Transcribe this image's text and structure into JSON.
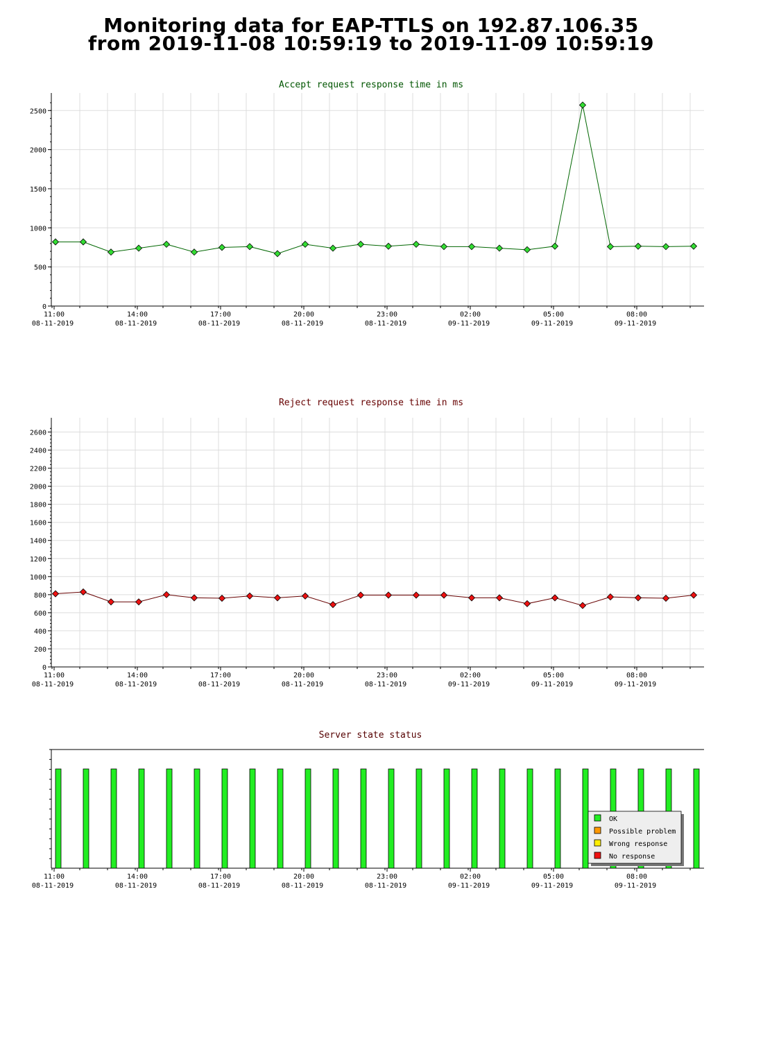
{
  "page_title": {
    "line1": "Monitoring data for EAP-TTLS on 192.87.106.35",
    "line2": "from 2019-11-08 10:59:19 to 2019-11-09 10:59:19"
  },
  "colors": {
    "accept_title": "#005500",
    "reject_title": "#660000",
    "status_title": "#550000",
    "accept_line": "#006600",
    "accept_marker": "#33dd33",
    "reject_line": "#660000",
    "reject_marker": "#ee1111",
    "ok": "#22ee22",
    "possible_problem": "#ff9900",
    "wrong_response": "#ffee00",
    "no_response": "#ee1111",
    "grid": "#dddddd"
  },
  "x_axis_ticks": [
    {
      "time": "11:00",
      "date": "08-11-2019"
    },
    {
      "time": "14:00",
      "date": "08-11-2019"
    },
    {
      "time": "17:00",
      "date": "08-11-2019"
    },
    {
      "time": "20:00",
      "date": "08-11-2019"
    },
    {
      "time": "23:00",
      "date": "08-11-2019"
    },
    {
      "time": "02:00",
      "date": "09-11-2019"
    },
    {
      "time": "05:00",
      "date": "09-11-2019"
    },
    {
      "time": "08:00",
      "date": "09-11-2019"
    }
  ],
  "chart_data": [
    {
      "type": "line",
      "title": "Accept request response time in ms",
      "x_range": [
        "2019-11-08 10:59:19",
        "2019-11-09 10:59:19"
      ],
      "x": [
        "2019-11-08 11:00",
        "2019-11-08 12:00",
        "2019-11-08 13:00",
        "2019-11-08 14:00",
        "2019-11-08 15:00",
        "2019-11-08 16:00",
        "2019-11-08 17:00",
        "2019-11-08 18:00",
        "2019-11-08 19:00",
        "2019-11-08 20:00",
        "2019-11-08 21:00",
        "2019-11-08 22:00",
        "2019-11-08 23:00",
        "2019-11-09 00:00",
        "2019-11-09 01:00",
        "2019-11-09 02:00",
        "2019-11-09 03:00",
        "2019-11-09 04:00",
        "2019-11-09 05:00",
        "2019-11-09 06:00",
        "2019-11-09 07:00",
        "2019-11-09 08:00",
        "2019-11-09 09:00",
        "2019-11-09 10:00"
      ],
      "values": [
        820,
        820,
        690,
        740,
        790,
        690,
        750,
        760,
        670,
        790,
        740,
        790,
        765,
        790,
        760,
        760,
        740,
        720,
        765,
        2570,
        760,
        765,
        760,
        765
      ],
      "ylim": [
        0,
        2600
      ],
      "yticks": [
        0,
        500,
        1000,
        1500,
        2000,
        2500
      ],
      "grid": true
    },
    {
      "type": "line",
      "title": "Reject request response time in ms",
      "x_range": [
        "2019-11-08 10:59:19",
        "2019-11-09 10:59:19"
      ],
      "x": [
        "2019-11-08 11:00",
        "2019-11-08 12:00",
        "2019-11-08 13:00",
        "2019-11-08 14:00",
        "2019-11-08 15:00",
        "2019-11-08 16:00",
        "2019-11-08 17:00",
        "2019-11-08 18:00",
        "2019-11-08 19:00",
        "2019-11-08 20:00",
        "2019-11-08 21:00",
        "2019-11-08 22:00",
        "2019-11-08 23:00",
        "2019-11-09 00:00",
        "2019-11-09 01:00",
        "2019-11-09 02:00",
        "2019-11-09 03:00",
        "2019-11-09 04:00",
        "2019-11-09 05:00",
        "2019-11-09 06:00",
        "2019-11-09 07:00",
        "2019-11-09 08:00",
        "2019-11-09 09:00",
        "2019-11-09 10:00"
      ],
      "values": [
        810,
        830,
        720,
        720,
        800,
        765,
        760,
        785,
        765,
        785,
        690,
        795,
        795,
        795,
        795,
        765,
        765,
        700,
        765,
        680,
        775,
        765,
        760,
        795
      ],
      "ylim": [
        0,
        2650
      ],
      "yticks": [
        0,
        200,
        400,
        600,
        800,
        1000,
        1200,
        1400,
        1600,
        1800,
        2000,
        2200,
        2400,
        2600
      ],
      "grid": true
    },
    {
      "type": "bar",
      "title": "Server state status",
      "x_range": [
        "2019-11-08 10:59:19",
        "2019-11-09 10:59:19"
      ],
      "x": [
        "2019-11-08 11:00",
        "2019-11-08 12:00",
        "2019-11-08 13:00",
        "2019-11-08 14:00",
        "2019-11-08 15:00",
        "2019-11-08 16:00",
        "2019-11-08 17:00",
        "2019-11-08 18:00",
        "2019-11-08 19:00",
        "2019-11-08 20:00",
        "2019-11-08 21:00",
        "2019-11-08 22:00",
        "2019-11-08 23:00",
        "2019-11-09 00:00",
        "2019-11-09 01:00",
        "2019-11-09 02:00",
        "2019-11-09 03:00",
        "2019-11-09 04:00",
        "2019-11-09 05:00",
        "2019-11-09 06:00",
        "2019-11-09 07:00",
        "2019-11-09 08:00",
        "2019-11-09 09:00",
        "2019-11-09 10:00"
      ],
      "status": [
        "OK",
        "OK",
        "OK",
        "OK",
        "OK",
        "OK",
        "OK",
        "OK",
        "OK",
        "OK",
        "OK",
        "OK",
        "OK",
        "OK",
        "OK",
        "OK",
        "OK",
        "OK",
        "OK",
        "OK",
        "OK",
        "OK",
        "OK",
        "OK"
      ],
      "legend": {
        "placement": "bottom-right",
        "entries": [
          {
            "label": "OK",
            "color": "#22ee22"
          },
          {
            "label": "Possible problem",
            "color": "#ff9900"
          },
          {
            "label": "Wrong response",
            "color": "#ffee00"
          },
          {
            "label": "No response",
            "color": "#ee1111"
          }
        ]
      }
    }
  ]
}
